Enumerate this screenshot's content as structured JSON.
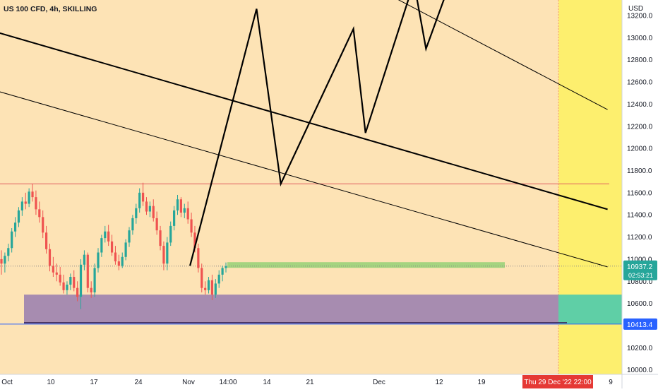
{
  "header": {
    "symbol_text": "US 100 CFD, 4h, SKILLING"
  },
  "chart_data": {
    "type": "candlestick",
    "currency": "USD",
    "y_ticks": [
      10000,
      10200,
      10400,
      10600,
      10800,
      11000,
      11200,
      11400,
      11600,
      11800,
      12000,
      12200,
      12400,
      12600,
      12800,
      13000,
      13200
    ],
    "x_ticks": [
      "Oct",
      "10",
      "17",
      "24",
      "Nov",
      "14:00",
      "14",
      "21",
      "Dec",
      "12",
      "19",
      "Thu 29 Dec '22   22:00",
      "9"
    ],
    "ylim": [
      9960,
      13340
    ],
    "last_price": "10937.2",
    "countdown": "02:53:21",
    "level_label": "10413.4",
    "horizontal_levels": [
      {
        "kind": "resistance",
        "value": 11680,
        "color": "#e06060"
      },
      {
        "kind": "last-price",
        "value": 10937,
        "color": "#888888"
      },
      {
        "kind": "support",
        "value": 10413.4,
        "color": "#2962ff"
      }
    ],
    "support_zone": {
      "from": 10413.4,
      "to": 10680
    },
    "target_zone": {
      "from": 10920,
      "to": 10960
    },
    "price_path": [
      [
        "Nov 2",
        10940
      ],
      [
        "Nov 13",
        13260
      ],
      [
        "Nov 17",
        11680
      ],
      [
        "Nov 29",
        13080
      ],
      [
        "Dec 1",
        12140
      ],
      [
        "Dec 9",
        13500
      ],
      [
        "Dec 11",
        12900
      ],
      [
        "Dec 14",
        13350
      ]
    ],
    "channel_lines": [
      {
        "from": [
          "Oct 1",
          13050
        ],
        "to": [
          "Jan 10",
          11450
        ],
        "weight": "bold"
      },
      {
        "from": [
          "Oct 1",
          12520
        ],
        "to": [
          "Jan 10",
          10930
        ],
        "weight": "thin"
      },
      {
        "from": [
          "Nov 17",
          13900
        ],
        "to": [
          "Jan 10",
          12350
        ],
        "weight": "thin"
      }
    ],
    "projection_start": "Thu 29 Dec '22   22:00",
    "candles_ohlc": [
      [
        11000,
        11080,
        10860,
        10960
      ],
      [
        10960,
        11060,
        10880,
        11030
      ],
      [
        11030,
        11140,
        10980,
        11100
      ],
      [
        11100,
        11280,
        11060,
        11250
      ],
      [
        11250,
        11380,
        11200,
        11330
      ],
      [
        11330,
        11470,
        11290,
        11440
      ],
      [
        11440,
        11560,
        11390,
        11520
      ],
      [
        11520,
        11600,
        11450,
        11500
      ],
      [
        11500,
        11640,
        11470,
        11610
      ],
      [
        11610,
        11680,
        11520,
        11560
      ],
      [
        11560,
        11620,
        11400,
        11450
      ],
      [
        11450,
        11520,
        11330,
        11380
      ],
      [
        11380,
        11440,
        11190,
        11240
      ],
      [
        11240,
        11300,
        11050,
        11090
      ],
      [
        11090,
        11140,
        10890,
        10940
      ],
      [
        10940,
        11020,
        10840,
        10880
      ],
      [
        10880,
        10960,
        10800,
        10860
      ],
      [
        10860,
        10930,
        10760,
        10790
      ],
      [
        10790,
        10860,
        10690,
        10720
      ],
      [
        10720,
        10800,
        10680,
        10770
      ],
      [
        10770,
        10870,
        10720,
        10840
      ],
      [
        10840,
        10900,
        10710,
        10740
      ],
      [
        10740,
        10800,
        10620,
        10660
      ],
      [
        10660,
        11000,
        10550,
        10950
      ],
      [
        10950,
        11080,
        10900,
        11040
      ],
      [
        11040,
        11060,
        10700,
        10740
      ],
      [
        10740,
        10800,
        10650,
        10700
      ],
      [
        10700,
        10960,
        10660,
        10920
      ],
      [
        10920,
        11100,
        10880,
        11060
      ],
      [
        11060,
        11220,
        11020,
        11190
      ],
      [
        11190,
        11300,
        11150,
        11250
      ],
      [
        11250,
        11310,
        11120,
        11160
      ],
      [
        11160,
        11220,
        11030,
        11060
      ],
      [
        11060,
        11120,
        10950,
        10980
      ],
      [
        10980,
        11040,
        10900,
        10940
      ],
      [
        10940,
        11060,
        10920,
        11020
      ],
      [
        11020,
        11180,
        10990,
        11150
      ],
      [
        11150,
        11290,
        11110,
        11260
      ],
      [
        11260,
        11400,
        11220,
        11370
      ],
      [
        11370,
        11500,
        11320,
        11460
      ],
      [
        11460,
        11640,
        11420,
        11600
      ],
      [
        11600,
        11690,
        11480,
        11520
      ],
      [
        11520,
        11560,
        11400,
        11430
      ],
      [
        11430,
        11520,
        11380,
        11480
      ],
      [
        11480,
        11540,
        11340,
        11370
      ],
      [
        11370,
        11430,
        11220,
        11260
      ],
      [
        11260,
        11300,
        11080,
        11120
      ],
      [
        11120,
        11160,
        10900,
        10960
      ],
      [
        10960,
        11200,
        10900,
        11150
      ],
      [
        11150,
        11340,
        11120,
        11300
      ],
      [
        11300,
        11480,
        11260,
        11440
      ],
      [
        11440,
        11580,
        11400,
        11540
      ],
      [
        11540,
        11560,
        11380,
        11420
      ],
      [
        11420,
        11500,
        11370,
        11460
      ],
      [
        11460,
        11520,
        11320,
        11360
      ],
      [
        11360,
        11420,
        11200,
        11240
      ],
      [
        11240,
        11300,
        11060,
        11100
      ],
      [
        11100,
        11140,
        10880,
        10920
      ],
      [
        10920,
        10960,
        10700,
        10740
      ],
      [
        10740,
        10800,
        10680,
        10720
      ],
      [
        10720,
        10840,
        10690,
        10810
      ],
      [
        10810,
        10860,
        10630,
        10680
      ],
      [
        10680,
        10820,
        10650,
        10780
      ],
      [
        10780,
        10900,
        10740,
        10860
      ],
      [
        10860,
        10940,
        10800,
        10920
      ],
      [
        10920,
        10970,
        10880,
        10937
      ]
    ]
  }
}
